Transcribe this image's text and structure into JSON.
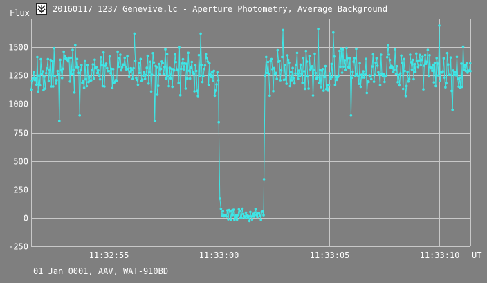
{
  "window": {
    "icon": "tangra-app-icon",
    "title": "20160117 1237 Genevive.lc - Aperture Photometry, Average Background"
  },
  "footer": {
    "text": "01 Jan 0001, AAV, WAT-910BD"
  },
  "colors": {
    "background": "#7f7f7f",
    "grid": "#c8c8c8",
    "series": "#3ee6e6",
    "text": "#ffffff"
  },
  "chart_data": {
    "type": "line",
    "ylabel": "Flux",
    "xlabel": "UT",
    "ylim": [
      -250,
      1750
    ],
    "yticks": [
      -250,
      0,
      250,
      500,
      750,
      1000,
      1250,
      1500
    ],
    "xlim": [
      "11:32:51.5",
      "11:33:11.4"
    ],
    "xticks": [
      "11:32:55",
      "11:33:00",
      "11:33:05",
      "11:33:10"
    ],
    "grid": true,
    "marker": "dot",
    "series": [
      {
        "sample_interval_s": 0.04,
        "x_start": "11:32:51.5",
        "x_end": "11:33:11.4",
        "segments": [
          {
            "from": "11:32:51.5",
            "to": "11:33:00.0",
            "level": 1290,
            "scatter": 170
          },
          {
            "from": "11:33:00.0",
            "to": "11:33:00.15",
            "values": [
              840,
              170,
              80
            ]
          },
          {
            "from": "11:33:00.15",
            "to": "11:33:02.05",
            "level": 30,
            "scatter": 45
          },
          {
            "from": "11:33:02.05",
            "to": "11:33:02.15",
            "values": [
              340,
              1250
            ]
          },
          {
            "from": "11:33:02.15",
            "to": "11:33:11.4",
            "level": 1290,
            "scatter": 170
          }
        ],
        "extremes": [
          {
            "x": "11:32:52.8",
            "y": 850
          },
          {
            "x": "11:32:53.7",
            "y": 900
          },
          {
            "x": "11:32:56.2",
            "y": 1620
          },
          {
            "x": "11:32:57.1",
            "y": 850
          },
          {
            "x": "11:32:59.2",
            "y": 1620
          },
          {
            "x": "11:33:02.9",
            "y": 1650
          },
          {
            "x": "11:33:04.5",
            "y": 1660
          },
          {
            "x": "11:33:05.2",
            "y": 1630
          },
          {
            "x": "11:33:06.0",
            "y": 900
          },
          {
            "x": "11:33:10.0",
            "y": 1690
          },
          {
            "x": "11:33:10.6",
            "y": 950
          }
        ]
      }
    ]
  }
}
